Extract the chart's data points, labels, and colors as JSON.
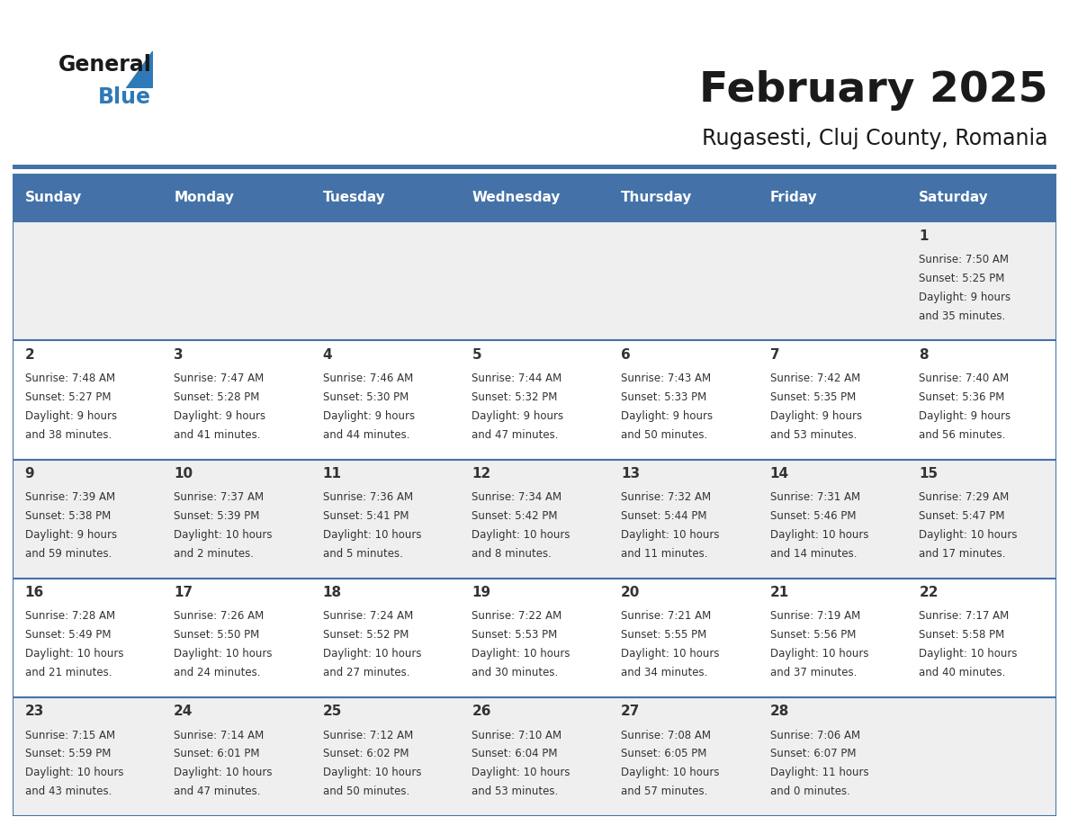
{
  "title": "February 2025",
  "subtitle": "Rugasesti, Cluj County, Romania",
  "header_bg_color": "#4472a8",
  "header_text_color": "#ffffff",
  "cell_bg_odd": "#efefef",
  "cell_bg_even": "#ffffff",
  "border_color": "#4472a8",
  "day_headers": [
    "Sunday",
    "Monday",
    "Tuesday",
    "Wednesday",
    "Thursday",
    "Friday",
    "Saturday"
  ],
  "title_color": "#1a1a1a",
  "subtitle_color": "#1a1a1a",
  "text_color": "#333333",
  "logo_general_color": "#1a1a1a",
  "logo_blue_color": "#2e7ab8",
  "weeks": [
    [
      {
        "day": null,
        "info": ""
      },
      {
        "day": null,
        "info": ""
      },
      {
        "day": null,
        "info": ""
      },
      {
        "day": null,
        "info": ""
      },
      {
        "day": null,
        "info": ""
      },
      {
        "day": null,
        "info": ""
      },
      {
        "day": 1,
        "info": "Sunrise: 7:50 AM\nSunset: 5:25 PM\nDaylight: 9 hours\nand 35 minutes."
      }
    ],
    [
      {
        "day": 2,
        "info": "Sunrise: 7:48 AM\nSunset: 5:27 PM\nDaylight: 9 hours\nand 38 minutes."
      },
      {
        "day": 3,
        "info": "Sunrise: 7:47 AM\nSunset: 5:28 PM\nDaylight: 9 hours\nand 41 minutes."
      },
      {
        "day": 4,
        "info": "Sunrise: 7:46 AM\nSunset: 5:30 PM\nDaylight: 9 hours\nand 44 minutes."
      },
      {
        "day": 5,
        "info": "Sunrise: 7:44 AM\nSunset: 5:32 PM\nDaylight: 9 hours\nand 47 minutes."
      },
      {
        "day": 6,
        "info": "Sunrise: 7:43 AM\nSunset: 5:33 PM\nDaylight: 9 hours\nand 50 minutes."
      },
      {
        "day": 7,
        "info": "Sunrise: 7:42 AM\nSunset: 5:35 PM\nDaylight: 9 hours\nand 53 minutes."
      },
      {
        "day": 8,
        "info": "Sunrise: 7:40 AM\nSunset: 5:36 PM\nDaylight: 9 hours\nand 56 minutes."
      }
    ],
    [
      {
        "day": 9,
        "info": "Sunrise: 7:39 AM\nSunset: 5:38 PM\nDaylight: 9 hours\nand 59 minutes."
      },
      {
        "day": 10,
        "info": "Sunrise: 7:37 AM\nSunset: 5:39 PM\nDaylight: 10 hours\nand 2 minutes."
      },
      {
        "day": 11,
        "info": "Sunrise: 7:36 AM\nSunset: 5:41 PM\nDaylight: 10 hours\nand 5 minutes."
      },
      {
        "day": 12,
        "info": "Sunrise: 7:34 AM\nSunset: 5:42 PM\nDaylight: 10 hours\nand 8 minutes."
      },
      {
        "day": 13,
        "info": "Sunrise: 7:32 AM\nSunset: 5:44 PM\nDaylight: 10 hours\nand 11 minutes."
      },
      {
        "day": 14,
        "info": "Sunrise: 7:31 AM\nSunset: 5:46 PM\nDaylight: 10 hours\nand 14 minutes."
      },
      {
        "day": 15,
        "info": "Sunrise: 7:29 AM\nSunset: 5:47 PM\nDaylight: 10 hours\nand 17 minutes."
      }
    ],
    [
      {
        "day": 16,
        "info": "Sunrise: 7:28 AM\nSunset: 5:49 PM\nDaylight: 10 hours\nand 21 minutes."
      },
      {
        "day": 17,
        "info": "Sunrise: 7:26 AM\nSunset: 5:50 PM\nDaylight: 10 hours\nand 24 minutes."
      },
      {
        "day": 18,
        "info": "Sunrise: 7:24 AM\nSunset: 5:52 PM\nDaylight: 10 hours\nand 27 minutes."
      },
      {
        "day": 19,
        "info": "Sunrise: 7:22 AM\nSunset: 5:53 PM\nDaylight: 10 hours\nand 30 minutes."
      },
      {
        "day": 20,
        "info": "Sunrise: 7:21 AM\nSunset: 5:55 PM\nDaylight: 10 hours\nand 34 minutes."
      },
      {
        "day": 21,
        "info": "Sunrise: 7:19 AM\nSunset: 5:56 PM\nDaylight: 10 hours\nand 37 minutes."
      },
      {
        "day": 22,
        "info": "Sunrise: 7:17 AM\nSunset: 5:58 PM\nDaylight: 10 hours\nand 40 minutes."
      }
    ],
    [
      {
        "day": 23,
        "info": "Sunrise: 7:15 AM\nSunset: 5:59 PM\nDaylight: 10 hours\nand 43 minutes."
      },
      {
        "day": 24,
        "info": "Sunrise: 7:14 AM\nSunset: 6:01 PM\nDaylight: 10 hours\nand 47 minutes."
      },
      {
        "day": 25,
        "info": "Sunrise: 7:12 AM\nSunset: 6:02 PM\nDaylight: 10 hours\nand 50 minutes."
      },
      {
        "day": 26,
        "info": "Sunrise: 7:10 AM\nSunset: 6:04 PM\nDaylight: 10 hours\nand 53 minutes."
      },
      {
        "day": 27,
        "info": "Sunrise: 7:08 AM\nSunset: 6:05 PM\nDaylight: 10 hours\nand 57 minutes."
      },
      {
        "day": 28,
        "info": "Sunrise: 7:06 AM\nSunset: 6:07 PM\nDaylight: 11 hours\nand 0 minutes."
      },
      {
        "day": null,
        "info": ""
      }
    ]
  ]
}
